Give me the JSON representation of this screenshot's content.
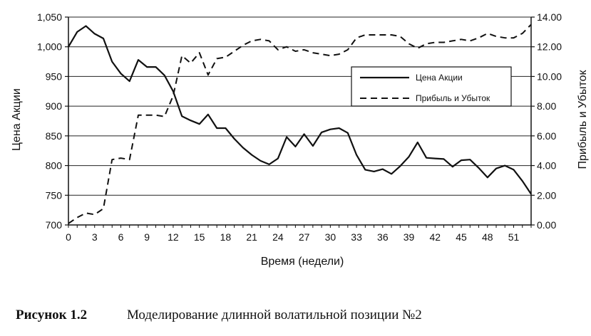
{
  "chart_data": {
    "type": "line",
    "xlabel": "Время (недели)",
    "ylabel_left": "Цена Акции",
    "ylabel_right": "Прибыль и Убыток",
    "x_ticks": [
      "0",
      "3",
      "6",
      "9",
      "12",
      "15",
      "18",
      "21",
      "24",
      "27",
      "30",
      "33",
      "36",
      "39",
      "42",
      "45",
      "48",
      "51"
    ],
    "y_left_ticks": [
      "700",
      "750",
      "800",
      "850",
      "900",
      "950",
      "1,000",
      "1,050"
    ],
    "y_right_ticks": [
      "0.00",
      "2.00",
      "4.00",
      "6.00",
      "8.00",
      "10.00",
      "12.00",
      "14.00"
    ],
    "xlim": [
      0,
      53
    ],
    "ylim_left": [
      700,
      1050
    ],
    "ylim_right": [
      0,
      14
    ],
    "grid": "horizontal",
    "legend_position": "right",
    "series": [
      {
        "name": "Цена Акции",
        "axis": "left",
        "style": "solid",
        "x": [
          0,
          1,
          2,
          3,
          4,
          5,
          6,
          7,
          8,
          9,
          10,
          11,
          12,
          13,
          14,
          15,
          16,
          17,
          18,
          19,
          20,
          21,
          22,
          23,
          24,
          25,
          26,
          27,
          28,
          29,
          30,
          31,
          32,
          33,
          34,
          35,
          36,
          37,
          38,
          39,
          40,
          41,
          42,
          43,
          44,
          45,
          46,
          47,
          48,
          49,
          50,
          51,
          52,
          53
        ],
        "values": [
          1000,
          1025,
          1035,
          1022,
          1014,
          975,
          955,
          942,
          978,
          966,
          966,
          952,
          925,
          883,
          876,
          870,
          886,
          863,
          863,
          845,
          830,
          818,
          808,
          802,
          812,
          848,
          832,
          853,
          833,
          856,
          861,
          863,
          855,
          818,
          793,
          790,
          794,
          786,
          799,
          815,
          839,
          813,
          812,
          811,
          798,
          809,
          810,
          796,
          780,
          795,
          800,
          793,
          774,
          752
        ]
      },
      {
        "name": "Прибыль и Убыток",
        "axis": "right",
        "style": "dashed",
        "x": [
          0,
          1,
          2,
          3,
          4,
          5,
          6,
          7,
          8,
          9,
          10,
          11,
          12,
          13,
          14,
          15,
          16,
          17,
          18,
          19,
          20,
          21,
          22,
          23,
          24,
          25,
          26,
          27,
          28,
          29,
          30,
          31,
          32,
          33,
          34,
          35,
          36,
          37,
          38,
          39,
          40,
          41,
          42,
          43,
          44,
          45,
          46,
          47,
          48,
          49,
          50,
          51,
          52,
          53
        ],
        "values": [
          0.1,
          0.5,
          0.8,
          0.7,
          1.1,
          4.4,
          4.5,
          4.4,
          7.4,
          7.4,
          7.4,
          7.3,
          8.7,
          11.4,
          10.9,
          11.6,
          10.1,
          11.2,
          11.3,
          11.7,
          12.1,
          12.4,
          12.5,
          12.4,
          11.8,
          12.0,
          11.7,
          11.8,
          11.6,
          11.5,
          11.4,
          11.5,
          11.8,
          12.6,
          12.8,
          12.8,
          12.8,
          12.8,
          12.7,
          12.2,
          11.9,
          12.2,
          12.3,
          12.3,
          12.4,
          12.5,
          12.4,
          12.6,
          12.9,
          12.7,
          12.6,
          12.6,
          12.9,
          13.5
        ]
      }
    ]
  },
  "caption": {
    "label": "Рисунок 1.2",
    "text": "Моделирование длинной волатильной позиции №2"
  },
  "colors": {
    "line": "#111111",
    "grid": "#222222",
    "background": "#ffffff"
  }
}
